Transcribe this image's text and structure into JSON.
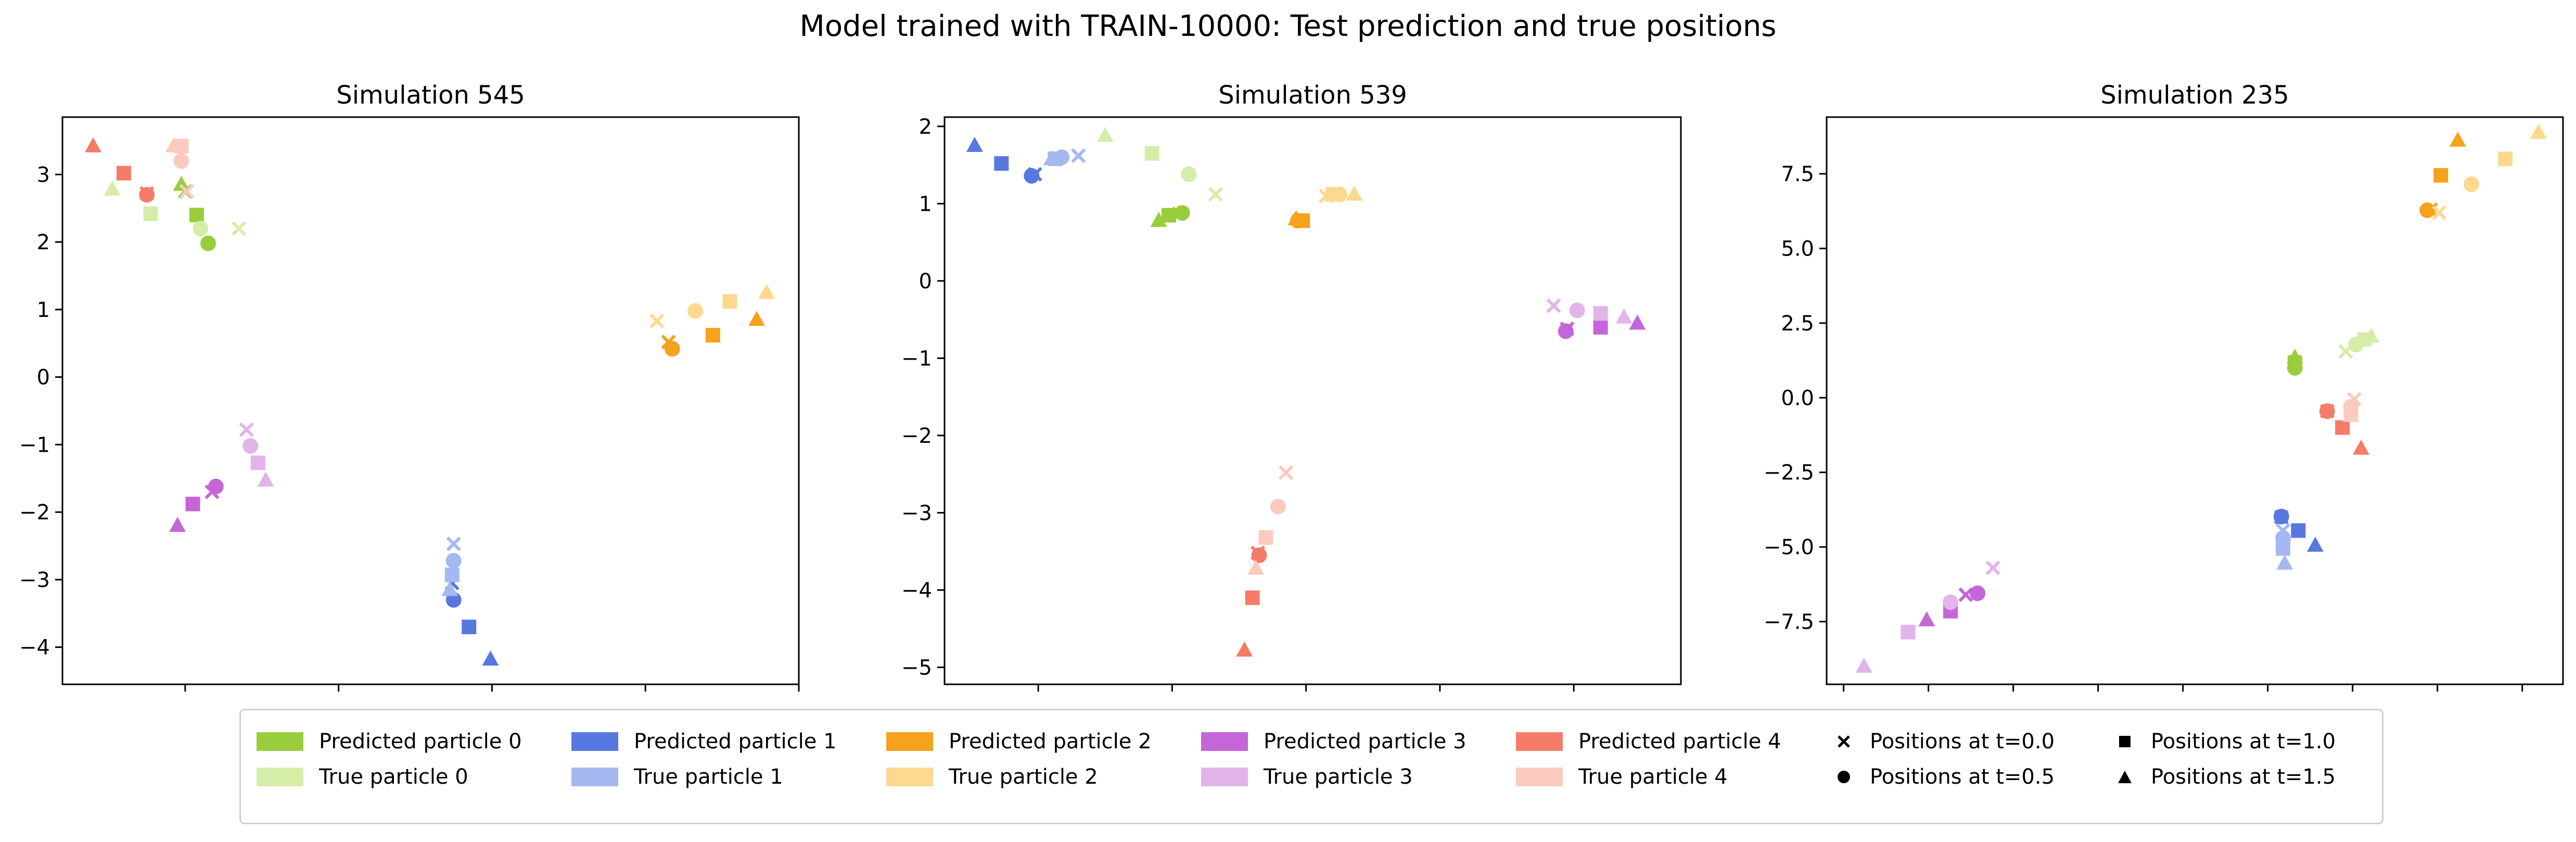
{
  "suptitle": "Model trained with TRAIN-10000: Test prediction and true positions",
  "chart_data": [
    {
      "type": "scatter",
      "title": "Simulation 545",
      "xlim": [
        -3.6,
        6.0
      ],
      "ylim": [
        -4.55,
        3.85
      ],
      "xticks": [
        -2,
        0,
        2,
        4,
        6
      ],
      "yticks": [
        -4,
        -3,
        -2,
        -1,
        0,
        1,
        2,
        3
      ],
      "series": [
        {
          "particle": 0,
          "kind": "predicted",
          "points": [
            {
              "t": 0.0,
              "x": -2.0,
              "y": 2.75
            },
            {
              "t": 0.5,
              "x": -1.7,
              "y": 1.98
            },
            {
              "t": 1.0,
              "x": -1.85,
              "y": 2.4
            },
            {
              "t": 1.5,
              "x": -2.05,
              "y": 2.85
            }
          ]
        },
        {
          "particle": 0,
          "kind": "true",
          "points": [
            {
              "t": 0.0,
              "x": -1.3,
              "y": 2.2
            },
            {
              "t": 0.5,
              "x": -1.8,
              "y": 2.2
            },
            {
              "t": 1.0,
              "x": -2.45,
              "y": 2.42
            },
            {
              "t": 1.5,
              "x": -2.95,
              "y": 2.78
            }
          ]
        },
        {
          "particle": 1,
          "kind": "predicted",
          "points": [
            {
              "t": 0.0,
              "x": 1.48,
              "y": -3.05
            },
            {
              "t": 0.5,
              "x": 1.5,
              "y": -3.3
            },
            {
              "t": 1.0,
              "x": 1.7,
              "y": -3.7
            },
            {
              "t": 1.5,
              "x": 1.98,
              "y": -4.18
            }
          ]
        },
        {
          "particle": 1,
          "kind": "true",
          "points": [
            {
              "t": 0.0,
              "x": 1.5,
              "y": -2.47
            },
            {
              "t": 0.5,
              "x": 1.5,
              "y": -2.72
            },
            {
              "t": 1.0,
              "x": 1.48,
              "y": -2.93
            },
            {
              "t": 1.5,
              "x": 1.45,
              "y": -3.15
            }
          ]
        },
        {
          "particle": 2,
          "kind": "predicted",
          "points": [
            {
              "t": 0.0,
              "x": 4.3,
              "y": 0.52
            },
            {
              "t": 0.5,
              "x": 4.35,
              "y": 0.42
            },
            {
              "t": 1.0,
              "x": 4.88,
              "y": 0.62
            },
            {
              "t": 1.5,
              "x": 5.45,
              "y": 0.85
            }
          ]
        },
        {
          "particle": 2,
          "kind": "true",
          "points": [
            {
              "t": 0.0,
              "x": 4.15,
              "y": 0.83
            },
            {
              "t": 0.5,
              "x": 4.65,
              "y": 0.98
            },
            {
              "t": 1.0,
              "x": 5.1,
              "y": 1.12
            },
            {
              "t": 1.5,
              "x": 5.58,
              "y": 1.25
            }
          ]
        },
        {
          "particle": 3,
          "kind": "predicted",
          "points": [
            {
              "t": 0.0,
              "x": -1.65,
              "y": -1.7
            },
            {
              "t": 0.5,
              "x": -1.6,
              "y": -1.62
            },
            {
              "t": 1.0,
              "x": -1.9,
              "y": -1.88
            },
            {
              "t": 1.5,
              "x": -2.1,
              "y": -2.2
            }
          ]
        },
        {
          "particle": 3,
          "kind": "true",
          "points": [
            {
              "t": 0.0,
              "x": -1.2,
              "y": -0.78
            },
            {
              "t": 0.5,
              "x": -1.15,
              "y": -1.02
            },
            {
              "t": 1.0,
              "x": -1.05,
              "y": -1.27
            },
            {
              "t": 1.5,
              "x": -0.95,
              "y": -1.53
            }
          ]
        },
        {
          "particle": 4,
          "kind": "predicted",
          "points": [
            {
              "t": 0.0,
              "x": -2.5,
              "y": 2.72
            },
            {
              "t": 0.5,
              "x": -2.5,
              "y": 2.7
            },
            {
              "t": 1.0,
              "x": -2.8,
              "y": 3.02
            },
            {
              "t": 1.5,
              "x": -3.2,
              "y": 3.42
            }
          ]
        },
        {
          "particle": 4,
          "kind": "true",
          "points": [
            {
              "t": 0.0,
              "x": -1.98,
              "y": 2.75
            },
            {
              "t": 0.5,
              "x": -2.05,
              "y": 3.2
            },
            {
              "t": 1.0,
              "x": -2.05,
              "y": 3.42
            },
            {
              "t": 1.5,
              "x": -2.15,
              "y": 3.42
            }
          ]
        }
      ]
    },
    {
      "type": "scatter",
      "title": "Simulation 539",
      "xlim": [
        -5.4,
        5.6
      ],
      "ylim": [
        -5.22,
        2.12
      ],
      "xticks": [
        -4,
        -2,
        0,
        2,
        4
      ],
      "yticks": [
        -5,
        -4,
        -3,
        -2,
        -1,
        0,
        1,
        2
      ],
      "series": [
        {
          "particle": 0,
          "kind": "predicted",
          "points": [
            {
              "t": 0.0,
              "x": -1.9,
              "y": 0.87
            },
            {
              "t": 0.5,
              "x": -1.85,
              "y": 0.88
            },
            {
              "t": 1.0,
              "x": -2.05,
              "y": 0.85
            },
            {
              "t": 1.5,
              "x": -2.2,
              "y": 0.78
            }
          ]
        },
        {
          "particle": 0,
          "kind": "true",
          "points": [
            {
              "t": 0.0,
              "x": -1.35,
              "y": 1.12
            },
            {
              "t": 0.5,
              "x": -1.75,
              "y": 1.38
            },
            {
              "t": 1.0,
              "x": -2.3,
              "y": 1.65
            },
            {
              "t": 1.5,
              "x": -3.0,
              "y": 1.88
            }
          ]
        },
        {
          "particle": 1,
          "kind": "predicted",
          "points": [
            {
              "t": 0.0,
              "x": -4.05,
              "y": 1.38
            },
            {
              "t": 0.5,
              "x": -4.1,
              "y": 1.36
            },
            {
              "t": 1.0,
              "x": -4.55,
              "y": 1.52
            },
            {
              "t": 1.5,
              "x": -4.95,
              "y": 1.75
            }
          ]
        },
        {
          "particle": 1,
          "kind": "true",
          "points": [
            {
              "t": 0.0,
              "x": -3.4,
              "y": 1.62
            },
            {
              "t": 0.5,
              "x": -3.65,
              "y": 1.6
            },
            {
              "t": 1.0,
              "x": -3.75,
              "y": 1.58
            },
            {
              "t": 1.5,
              "x": -3.8,
              "y": 1.58
            }
          ]
        },
        {
          "particle": 2,
          "kind": "predicted",
          "points": [
            {
              "t": 0.0,
              "x": -0.1,
              "y": 0.78
            },
            {
              "t": 0.5,
              "x": -0.12,
              "y": 0.78
            },
            {
              "t": 1.0,
              "x": -0.05,
              "y": 0.78
            },
            {
              "t": 1.5,
              "x": -0.15,
              "y": 0.8
            }
          ]
        },
        {
          "particle": 2,
          "kind": "true",
          "points": [
            {
              "t": 0.0,
              "x": 0.3,
              "y": 1.1
            },
            {
              "t": 0.5,
              "x": 0.5,
              "y": 1.12
            },
            {
              "t": 1.0,
              "x": 0.4,
              "y": 1.12
            },
            {
              "t": 1.5,
              "x": 0.72,
              "y": 1.12
            }
          ]
        },
        {
          "particle": 3,
          "kind": "predicted",
          "points": [
            {
              "t": 0.0,
              "x": 3.9,
              "y": -0.62
            },
            {
              "t": 0.5,
              "x": 3.88,
              "y": -0.65
            },
            {
              "t": 1.0,
              "x": 4.4,
              "y": -0.6
            },
            {
              "t": 1.5,
              "x": 4.95,
              "y": -0.55
            }
          ]
        },
        {
          "particle": 3,
          "kind": "true",
          "points": [
            {
              "t": 0.0,
              "x": 3.7,
              "y": -0.32
            },
            {
              "t": 0.5,
              "x": 4.05,
              "y": -0.38
            },
            {
              "t": 1.0,
              "x": 4.4,
              "y": -0.42
            },
            {
              "t": 1.5,
              "x": 4.75,
              "y": -0.47
            }
          ]
        },
        {
          "particle": 4,
          "kind": "predicted",
          "points": [
            {
              "t": 0.0,
              "x": -0.72,
              "y": -3.52
            },
            {
              "t": 0.5,
              "x": -0.7,
              "y": -3.55
            },
            {
              "t": 1.0,
              "x": -0.8,
              "y": -4.1
            },
            {
              "t": 1.5,
              "x": -0.92,
              "y": -4.78
            }
          ]
        },
        {
          "particle": 4,
          "kind": "true",
          "points": [
            {
              "t": 0.0,
              "x": -0.3,
              "y": -2.48
            },
            {
              "t": 0.5,
              "x": -0.42,
              "y": -2.92
            },
            {
              "t": 1.0,
              "x": -0.6,
              "y": -3.32
            },
            {
              "t": 1.5,
              "x": -0.75,
              "y": -3.72
            }
          ]
        }
      ]
    },
    {
      "type": "scatter",
      "title": "Simulation 235",
      "xlim": [
        -13.0,
        8.7
      ],
      "ylim": [
        -9.6,
        9.4
      ],
      "xticks": [
        -12.5,
        -10.0,
        -7.5,
        -5.0,
        -2.5,
        0.0,
        2.5,
        5.0,
        7.5
      ],
      "yticks": [
        -7.5,
        -5.0,
        -2.5,
        0.0,
        2.5,
        5.0,
        7.5
      ],
      "series": [
        {
          "particle": 0,
          "kind": "predicted",
          "points": [
            {
              "t": 0.0,
              "x": 0.8,
              "y": 1.2
            },
            {
              "t": 0.5,
              "x": 0.8,
              "y": 1.0
            },
            {
              "t": 1.0,
              "x": 0.8,
              "y": 1.15
            },
            {
              "t": 1.5,
              "x": 0.8,
              "y": 1.35
            }
          ]
        },
        {
          "particle": 0,
          "kind": "true",
          "points": [
            {
              "t": 0.0,
              "x": 2.3,
              "y": 1.55
            },
            {
              "t": 0.5,
              "x": 2.6,
              "y": 1.78
            },
            {
              "t": 1.0,
              "x": 2.85,
              "y": 1.95
            },
            {
              "t": 1.5,
              "x": 3.05,
              "y": 2.05
            }
          ]
        },
        {
          "particle": 1,
          "kind": "predicted",
          "points": [
            {
              "t": 0.0,
              "x": 0.4,
              "y": -4.0
            },
            {
              "t": 0.5,
              "x": 0.4,
              "y": -3.98
            },
            {
              "t": 1.0,
              "x": 0.9,
              "y": -4.45
            },
            {
              "t": 1.5,
              "x": 1.4,
              "y": -4.95
            }
          ]
        },
        {
          "particle": 1,
          "kind": "true",
          "points": [
            {
              "t": 0.0,
              "x": 0.45,
              "y": -4.45
            },
            {
              "t": 0.5,
              "x": 0.45,
              "y": -4.7
            },
            {
              "t": 1.0,
              "x": 0.45,
              "y": -5.05
            },
            {
              "t": 1.5,
              "x": 0.5,
              "y": -5.55
            }
          ]
        },
        {
          "particle": 2,
          "kind": "predicted",
          "points": [
            {
              "t": 0.0,
              "x": 4.8,
              "y": 6.3
            },
            {
              "t": 0.5,
              "x": 4.7,
              "y": 6.28
            },
            {
              "t": 1.0,
              "x": 5.1,
              "y": 7.45
            },
            {
              "t": 1.5,
              "x": 5.6,
              "y": 8.62
            }
          ]
        },
        {
          "particle": 2,
          "kind": "true",
          "points": [
            {
              "t": 0.0,
              "x": 5.05,
              "y": 6.2
            },
            {
              "t": 0.5,
              "x": 6.0,
              "y": 7.15
            },
            {
              "t": 1.0,
              "x": 7.0,
              "y": 8.0
            },
            {
              "t": 1.5,
              "x": 7.98,
              "y": 8.88
            }
          ]
        },
        {
          "particle": 3,
          "kind": "predicted",
          "points": [
            {
              "t": 0.0,
              "x": -8.9,
              "y": -6.6
            },
            {
              "t": 0.5,
              "x": -8.55,
              "y": -6.55
            },
            {
              "t": 1.0,
              "x": -9.35,
              "y": -7.15
            },
            {
              "t": 1.5,
              "x": -10.05,
              "y": -7.45
            }
          ]
        },
        {
          "particle": 3,
          "kind": "true",
          "points": [
            {
              "t": 0.0,
              "x": -8.1,
              "y": -5.7
            },
            {
              "t": 0.5,
              "x": -9.35,
              "y": -6.85
            },
            {
              "t": 1.0,
              "x": -10.6,
              "y": -7.85
            },
            {
              "t": 1.5,
              "x": -11.9,
              "y": -9.0
            }
          ]
        },
        {
          "particle": 4,
          "kind": "predicted",
          "points": [
            {
              "t": 0.0,
              "x": 1.75,
              "y": -0.45
            },
            {
              "t": 0.5,
              "x": 1.75,
              "y": -0.45
            },
            {
              "t": 1.0,
              "x": 2.2,
              "y": -1.0
            },
            {
              "t": 1.5,
              "x": 2.75,
              "y": -1.7
            }
          ]
        },
        {
          "particle": 4,
          "kind": "true",
          "points": [
            {
              "t": 0.0,
              "x": 2.55,
              "y": -0.05
            },
            {
              "t": 0.5,
              "x": 2.45,
              "y": -0.3
            },
            {
              "t": 1.0,
              "x": 2.45,
              "y": -0.45
            },
            {
              "t": 1.5,
              "x": 2.45,
              "y": -0.6
            }
          ]
        }
      ]
    }
  ],
  "colors": {
    "predicted": [
      "#9ACD3C",
      "#5878E0",
      "#F5A21C",
      "#C466D8",
      "#F47C68"
    ],
    "true": [
      "#D5EDA8",
      "#A6B8F0",
      "#FCD98F",
      "#E2B4EA",
      "#FBCABF"
    ]
  },
  "legend": {
    "particles": [
      {
        "predicted": "Predicted particle 0",
        "true": "True particle 0"
      },
      {
        "predicted": "Predicted particle 1",
        "true": "True particle 1"
      },
      {
        "predicted": "Predicted particle 2",
        "true": "True particle 2"
      },
      {
        "predicted": "Predicted particle 3",
        "true": "True particle 3"
      },
      {
        "predicted": "Predicted particle 4",
        "true": "True particle 4"
      }
    ],
    "markers": [
      {
        "marker": "x",
        "label": "Positions at t=0.0"
      },
      {
        "marker": "circle",
        "label": "Positions at t=0.5"
      },
      {
        "marker": "square",
        "label": "Positions at t=1.0"
      },
      {
        "marker": "triangle",
        "label": "Positions at t=1.5"
      }
    ]
  }
}
